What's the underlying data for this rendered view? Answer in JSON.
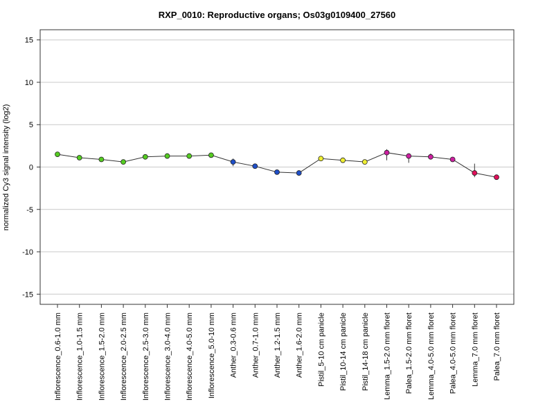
{
  "chart_data": {
    "type": "line",
    "title": "RXP_0010: Reproductive organs; Os03g0109400_27560",
    "xlabel": "",
    "ylabel": "normalized Cy3 signal intensity (log2)",
    "ylim": [
      -16.2,
      16.2
    ],
    "yticks": [
      -15,
      -10,
      -5,
      0,
      5,
      10,
      15
    ],
    "grid": "horizontal",
    "line_color": "#333333",
    "categories": [
      "Inflorescence_0.6-1.0 mm",
      "Inflorescence_1.0-1.5 mm",
      "Inflorescence_1.5-2.0 mm",
      "Inflorescence_2.0-2.5 mm",
      "Inflorescence_2.5-3.0 mm",
      "Inflorescence_3.0-4.0 mm",
      "Inflorescence_4.0-5.0 mm",
      "Inflorescence_5.0-10 mm",
      "Anther_0.3-0.6 mm",
      "Anther_0.7-1.0 mm",
      "Anther_1.2-1.5 mm",
      "Anther_1.6-2.0 mm",
      "Pistil_5-10 cm panicle",
      "Pistil_10-14 cm panicle",
      "Pistil_14-18 cm panicle",
      "Lemma_1.5-2.0 mm floret",
      "Palea_1.5-2.0 mm floret",
      "Lemma_4.0-5.0 mm floret",
      "Palea_4.0-5.0 mm floret",
      "Lemma_7.0 mm floret",
      "Palea_7.0 mm floret"
    ],
    "values": [
      1.5,
      1.1,
      0.9,
      0.6,
      1.2,
      1.3,
      1.3,
      1.4,
      0.6,
      0.1,
      -0.6,
      -0.7,
      1.0,
      0.8,
      0.6,
      1.7,
      1.3,
      1.2,
      0.9,
      -0.7,
      -1.2
    ],
    "error_low": [
      1.4,
      1.0,
      0.8,
      0.5,
      1.1,
      1.2,
      1.2,
      1.3,
      0.1,
      0.0,
      -0.8,
      -0.8,
      0.9,
      0.7,
      0.5,
      0.8,
      0.5,
      0.9,
      0.8,
      -1.2,
      -1.3
    ],
    "error_high": [
      1.6,
      1.2,
      1.0,
      0.7,
      1.3,
      1.4,
      1.4,
      1.5,
      1.0,
      0.2,
      -0.4,
      -0.6,
      1.1,
      0.9,
      0.7,
      2.1,
      1.6,
      1.6,
      1.0,
      0.4,
      -1.1
    ],
    "point_colors": [
      "#55cc22",
      "#55cc22",
      "#55cc22",
      "#55cc22",
      "#55cc22",
      "#55cc22",
      "#55cc22",
      "#55cc22",
      "#1f4fc8",
      "#1f4fc8",
      "#1f4fc8",
      "#1f4fc8",
      "#eeee33",
      "#eeee33",
      "#eeee33",
      "#cc1fa0",
      "#cc1fa0",
      "#cc1fa0",
      "#cc1fa0",
      "#e0105a",
      "#e0105a"
    ]
  }
}
